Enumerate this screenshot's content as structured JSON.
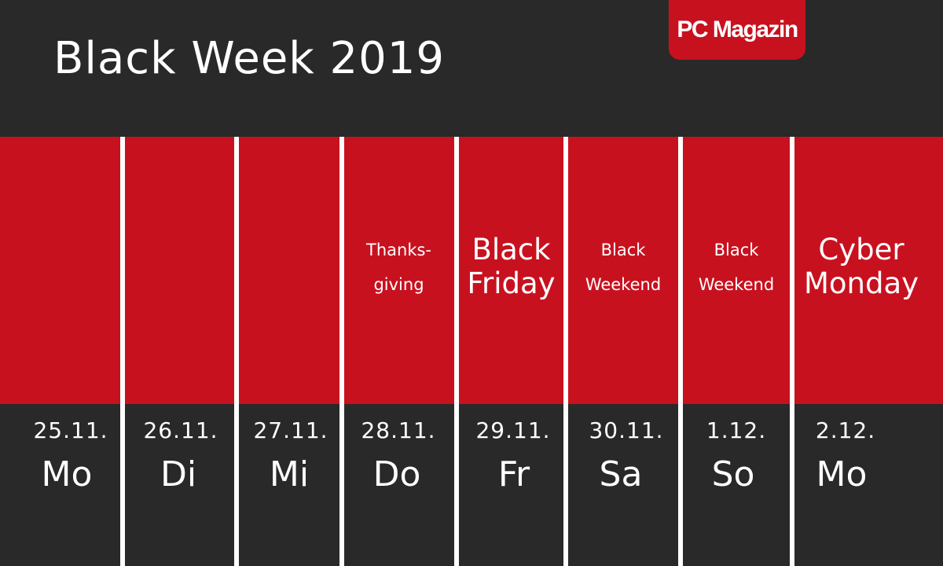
{
  "header": {
    "title": "Black Week 2019",
    "logo_text": "PC Magazin"
  },
  "colors": {
    "background": "#292929",
    "accent_red": "#c8111f",
    "text": "#ffffff"
  },
  "days": [
    {
      "date": "25.11.",
      "weekday": "Mo",
      "event": []
    },
    {
      "date": "26.11.",
      "weekday": "Di",
      "event": []
    },
    {
      "date": "27.11.",
      "weekday": "Mi",
      "event": []
    },
    {
      "date": "28.11.",
      "weekday": "Do",
      "event": [
        "Thanks-",
        "giving"
      ]
    },
    {
      "date": "29.11.",
      "weekday": "Fr",
      "event": [
        "Black",
        "Friday"
      ]
    },
    {
      "date": "30.11.",
      "weekday": "Sa",
      "event": [
        "Black",
        "Weekend"
      ]
    },
    {
      "date": "1.12.",
      "weekday": "So",
      "event": [
        "Black",
        "Weekend"
      ]
    },
    {
      "date": "2.12.",
      "weekday": "Mo",
      "event": [
        "Cyber",
        "Monday"
      ]
    }
  ]
}
